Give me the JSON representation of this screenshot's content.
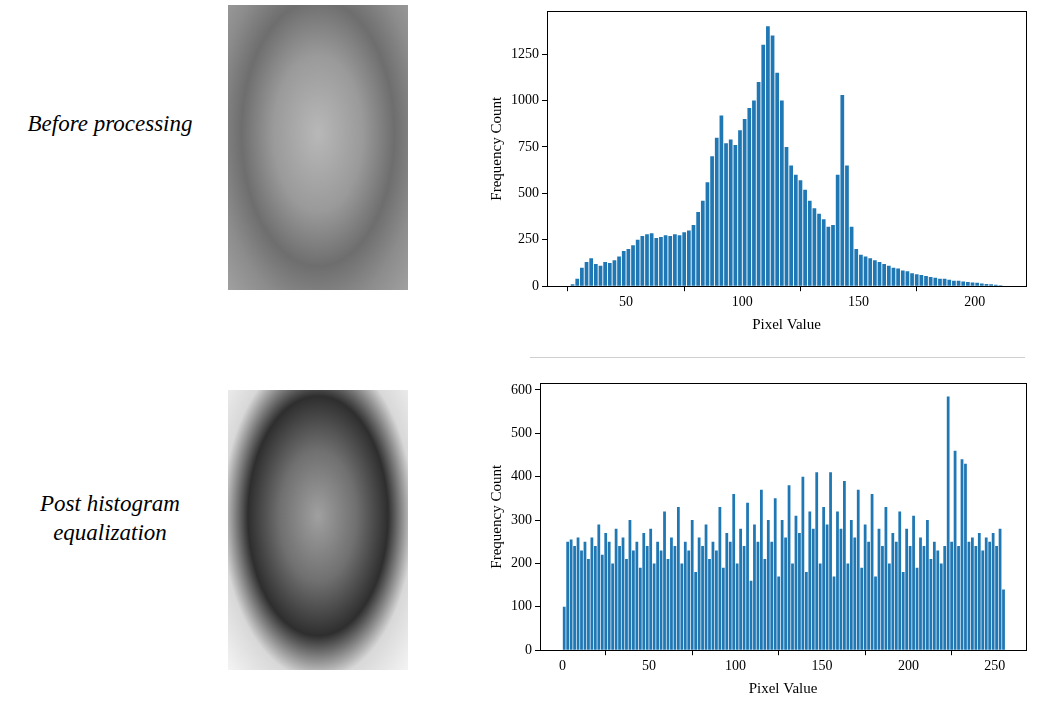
{
  "chart_data": [
    {
      "type": "histogram",
      "title": "Before processing",
      "x_label": "Pixel Value",
      "y_label": "Frequency Count",
      "color": "#1f77b4",
      "grid": false,
      "xlim": [
        16,
        222
      ],
      "xticks": [
        50,
        100,
        150,
        200
      ],
      "ylim": [
        0,
        1480
      ],
      "yticks": [
        0,
        250,
        500,
        750,
        1000,
        1250
      ],
      "bins": [
        26,
        28,
        30,
        32,
        34,
        36,
        38,
        40,
        42,
        44,
        46,
        48,
        50,
        52,
        54,
        56,
        58,
        60,
        62,
        64,
        66,
        68,
        70,
        72,
        74,
        76,
        78,
        80,
        82,
        84,
        86,
        88,
        90,
        92,
        94,
        96,
        98,
        100,
        102,
        104,
        106,
        108,
        110,
        112,
        114,
        116,
        118,
        120,
        122,
        124,
        126,
        128,
        130,
        132,
        134,
        136,
        138,
        140,
        142,
        144,
        146,
        148,
        150,
        152,
        154,
        156,
        158,
        160,
        162,
        164,
        166,
        168,
        170,
        172,
        174,
        176,
        178,
        180,
        182,
        184,
        186,
        188,
        190,
        192,
        194,
        196,
        198,
        200,
        202,
        204,
        206,
        208,
        210,
        212,
        214
      ],
      "values": [
        10,
        40,
        100,
        130,
        150,
        120,
        110,
        130,
        125,
        140,
        160,
        190,
        200,
        220,
        250,
        270,
        280,
        285,
        260,
        265,
        275,
        270,
        280,
        275,
        290,
        300,
        330,
        400,
        460,
        560,
        700,
        800,
        920,
        770,
        790,
        760,
        840,
        900,
        960,
        1000,
        1100,
        1300,
        1400,
        1350,
        1150,
        1000,
        750,
        650,
        600,
        570,
        520,
        460,
        420,
        390,
        360,
        320,
        330,
        600,
        1030,
        650,
        320,
        200,
        170,
        160,
        150,
        140,
        130,
        120,
        110,
        100,
        95,
        85,
        80,
        70,
        65,
        60,
        55,
        50,
        45,
        40,
        40,
        35,
        30,
        30,
        25,
        22,
        20,
        18,
        15,
        12,
        10,
        8,
        5,
        3
      ]
    },
    {
      "type": "histogram",
      "title": "Post histogram equalization",
      "x_label": "Pixel Value",
      "y_label": "Frequency Count",
      "color": "#1f77b4",
      "grid": false,
      "xlim": [
        -13,
        268
      ],
      "xticks": [
        0,
        50,
        100,
        150,
        200,
        250
      ],
      "ylim": [
        0,
        615
      ],
      "yticks": [
        0,
        100,
        200,
        300,
        400,
        500,
        600
      ],
      "bins": [
        0,
        2,
        4,
        6,
        8,
        10,
        12,
        14,
        16,
        18,
        20,
        22,
        24,
        26,
        28,
        30,
        32,
        34,
        36,
        38,
        40,
        42,
        44,
        46,
        48,
        50,
        52,
        54,
        56,
        58,
        60,
        62,
        64,
        66,
        68,
        70,
        72,
        74,
        76,
        78,
        80,
        82,
        84,
        86,
        88,
        90,
        92,
        94,
        96,
        98,
        100,
        102,
        104,
        106,
        108,
        110,
        112,
        114,
        116,
        118,
        120,
        122,
        124,
        126,
        128,
        130,
        132,
        134,
        136,
        138,
        140,
        142,
        144,
        146,
        148,
        150,
        152,
        154,
        156,
        158,
        160,
        162,
        164,
        166,
        168,
        170,
        172,
        174,
        176,
        178,
        180,
        182,
        184,
        186,
        188,
        190,
        192,
        194,
        196,
        198,
        200,
        202,
        204,
        206,
        208,
        210,
        212,
        214,
        216,
        218,
        220,
        222,
        224,
        226,
        228,
        230,
        232,
        234,
        236,
        238,
        240,
        242,
        244,
        246,
        248,
        250,
        252,
        254,
        256
      ],
      "values": [
        100,
        250,
        255,
        240,
        260,
        230,
        250,
        210,
        260,
        240,
        290,
        220,
        270,
        250,
        200,
        280,
        240,
        260,
        210,
        300,
        230,
        250,
        190,
        270,
        240,
        280,
        200,
        250,
        230,
        320,
        210,
        260,
        240,
        330,
        200,
        250,
        230,
        300,
        180,
        260,
        240,
        290,
        210,
        250,
        230,
        330,
        190,
        270,
        250,
        360,
        200,
        280,
        240,
        340,
        160,
        290,
        250,
        370,
        210,
        300,
        250,
        350,
        170,
        300,
        260,
        380,
        200,
        310,
        270,
        400,
        180,
        320,
        280,
        410,
        200,
        330,
        290,
        410,
        170,
        320,
        280,
        390,
        200,
        300,
        260,
        370,
        190,
        290,
        250,
        360,
        170,
        280,
        240,
        330,
        200,
        270,
        250,
        320,
        180,
        280,
        240,
        310,
        190,
        260,
        240,
        300,
        210,
        250,
        230,
        200,
        240,
        585,
        250,
        460,
        240,
        440,
        430,
        250,
        260,
        240,
        270,
        230,
        260,
        250,
        270,
        240,
        280,
        140
      ]
    }
  ]
}
